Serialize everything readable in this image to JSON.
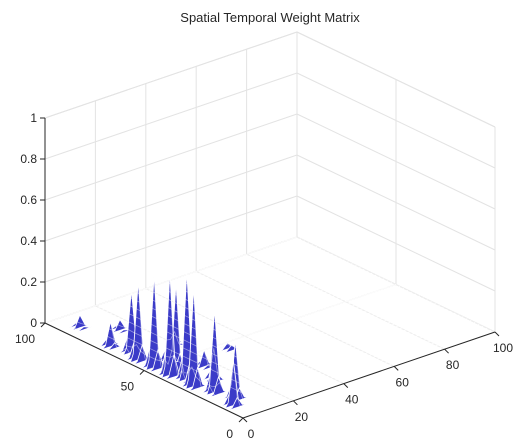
{
  "chart_data": {
    "type": "surface",
    "title": "Spatial Temporal Weight Matrix",
    "xlabel": "",
    "ylabel": "",
    "zlabel": "",
    "xlim": [
      0,
      100
    ],
    "ylim": [
      0,
      100
    ],
    "zlim": [
      0,
      1
    ],
    "x_ticks": [
      "0",
      "20",
      "40",
      "60",
      "80",
      "100"
    ],
    "y_ticks": [
      "0",
      "50",
      "100"
    ],
    "z_ticks": [
      "0",
      "0.2",
      "0.4",
      "0.6",
      "0.8",
      "1"
    ],
    "grid": true,
    "surface_color": "#3b3bc8",
    "edge_color": "#ffffff",
    "peaks": [
      {
        "x": 4,
        "y": 42,
        "z": 0.5
      },
      {
        "x": 4,
        "y": 30,
        "z": 0.48
      },
      {
        "x": 6,
        "y": 36,
        "z": 0.52
      },
      {
        "x": 4,
        "y": 50,
        "z": 0.45
      },
      {
        "x": 6,
        "y": 22,
        "z": 0.4
      },
      {
        "x": 8,
        "y": 44,
        "z": 0.42
      },
      {
        "x": 4,
        "y": 58,
        "z": 0.38
      },
      {
        "x": 6,
        "y": 64,
        "z": 0.3
      },
      {
        "x": 8,
        "y": 14,
        "z": 0.28
      },
      {
        "x": 4,
        "y": 10,
        "z": 0.22
      },
      {
        "x": 10,
        "y": 50,
        "z": 0.25
      },
      {
        "x": 12,
        "y": 30,
        "z": 0.15
      },
      {
        "x": 4,
        "y": 72,
        "z": 0.12
      },
      {
        "x": 16,
        "y": 40,
        "z": 0.08
      },
      {
        "x": 20,
        "y": 60,
        "z": 0.06
      },
      {
        "x": 6,
        "y": 90,
        "z": 0.06
      },
      {
        "x": 14,
        "y": 80,
        "z": 0.05
      },
      {
        "x": 30,
        "y": 45,
        "z": 0.04
      }
    ]
  }
}
